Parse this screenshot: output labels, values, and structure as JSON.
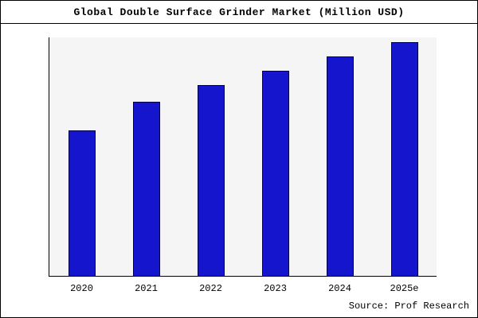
{
  "chart_data": {
    "type": "bar",
    "title": "Global Double Surface Grinder Market (Million USD)",
    "categories": [
      "2020",
      "2021",
      "2022",
      "2023",
      "2024",
      "2025e"
    ],
    "values": [
      61,
      73,
      80,
      86,
      92,
      98
    ],
    "xlabel": "",
    "ylabel": "",
    "ylim": [
      0,
      100
    ],
    "grid": false,
    "legend_position": "none",
    "bar_color": "#1515cd",
    "bar_border_color": "#00004d",
    "plot_background": "#f5f5f5"
  },
  "footer": {
    "source": "Source: Prof Research"
  }
}
